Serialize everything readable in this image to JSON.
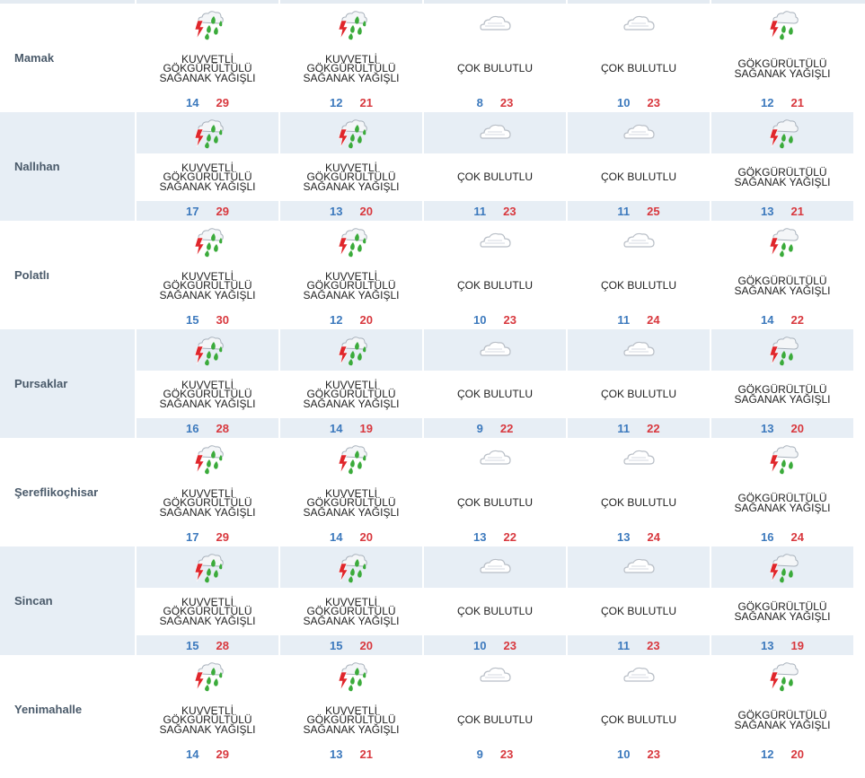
{
  "colors": {
    "row_shade": "#e7eef5",
    "city_text": "#4a5a6a",
    "min_temp": "#3c79bd",
    "max_temp": "#d8383e"
  },
  "forecast": [
    {
      "city": "Mamak",
      "days": [
        {
          "desc": "KUVVETLİ GÖKGÜRÜLTÜLÜ SAĞANAK YAĞIŞLI",
          "icon": "strong-thunderstorm-icon",
          "min": "14",
          "max": "29"
        },
        {
          "desc": "KUVVETLİ GÖKGÜRÜLTÜLÜ SAĞANAK YAĞIŞLI",
          "icon": "strong-thunderstorm-icon",
          "min": "12",
          "max": "21"
        },
        {
          "desc": "ÇOK BULUTLU",
          "icon": "cloudy-icon",
          "min": "8",
          "max": "23"
        },
        {
          "desc": "ÇOK BULUTLU",
          "icon": "cloudy-icon",
          "min": "10",
          "max": "23"
        },
        {
          "desc": "GÖKGÜRÜLTÜLÜ SAĞANAK YAĞIŞLI",
          "icon": "thunderstorm-icon",
          "min": "12",
          "max": "21"
        }
      ]
    },
    {
      "city": "Nallıhan",
      "days": [
        {
          "desc": "KUVVETLİ GÖKGÜRÜLTÜLÜ SAĞANAK YAĞIŞLI",
          "icon": "strong-thunderstorm-icon",
          "min": "17",
          "max": "29"
        },
        {
          "desc": "KUVVETLİ GÖKGÜRÜLTÜLÜ SAĞANAK YAĞIŞLI",
          "icon": "strong-thunderstorm-icon",
          "min": "13",
          "max": "20"
        },
        {
          "desc": "ÇOK BULUTLU",
          "icon": "cloudy-icon",
          "min": "11",
          "max": "23"
        },
        {
          "desc": "ÇOK BULUTLU",
          "icon": "cloudy-icon",
          "min": "11",
          "max": "25"
        },
        {
          "desc": "GÖKGÜRÜLTÜLÜ SAĞANAK YAĞIŞLI",
          "icon": "thunderstorm-icon",
          "min": "13",
          "max": "21"
        }
      ]
    },
    {
      "city": "Polatlı",
      "days": [
        {
          "desc": "KUVVETLİ GÖKGÜRÜLTÜLÜ SAĞANAK YAĞIŞLI",
          "icon": "strong-thunderstorm-icon",
          "min": "15",
          "max": "30"
        },
        {
          "desc": "KUVVETLİ GÖKGÜRÜLTÜLÜ SAĞANAK YAĞIŞLI",
          "icon": "strong-thunderstorm-icon",
          "min": "12",
          "max": "20"
        },
        {
          "desc": "ÇOK BULUTLU",
          "icon": "cloudy-icon",
          "min": "10",
          "max": "23"
        },
        {
          "desc": "ÇOK BULUTLU",
          "icon": "cloudy-icon",
          "min": "11",
          "max": "24"
        },
        {
          "desc": "GÖKGÜRÜLTÜLÜ SAĞANAK YAĞIŞLI",
          "icon": "thunderstorm-icon",
          "min": "14",
          "max": "22"
        }
      ]
    },
    {
      "city": "Pursaklar",
      "days": [
        {
          "desc": "KUVVETLİ GÖKGÜRÜLTÜLÜ SAĞANAK YAĞIŞLI",
          "icon": "strong-thunderstorm-icon",
          "min": "16",
          "max": "28"
        },
        {
          "desc": "KUVVETLİ GÖKGÜRÜLTÜLÜ SAĞANAK YAĞIŞLI",
          "icon": "strong-thunderstorm-icon",
          "min": "14",
          "max": "19"
        },
        {
          "desc": "ÇOK BULUTLU",
          "icon": "cloudy-icon",
          "min": "9",
          "max": "22"
        },
        {
          "desc": "ÇOK BULUTLU",
          "icon": "cloudy-icon",
          "min": "11",
          "max": "22"
        },
        {
          "desc": "GÖKGÜRÜLTÜLÜ SAĞANAK YAĞIŞLI",
          "icon": "thunderstorm-icon",
          "min": "13",
          "max": "20"
        }
      ]
    },
    {
      "city": "Şereflikoçhisar",
      "days": [
        {
          "desc": "KUVVETLİ GÖKGÜRÜLTÜLÜ SAĞANAK YAĞIŞLI",
          "icon": "strong-thunderstorm-icon",
          "min": "17",
          "max": "29"
        },
        {
          "desc": "KUVVETLİ GÖKGÜRÜLTÜLÜ SAĞANAK YAĞIŞLI",
          "icon": "strong-thunderstorm-icon",
          "min": "14",
          "max": "20"
        },
        {
          "desc": "ÇOK BULUTLU",
          "icon": "cloudy-icon",
          "min": "13",
          "max": "22"
        },
        {
          "desc": "ÇOK BULUTLU",
          "icon": "cloudy-icon",
          "min": "13",
          "max": "24"
        },
        {
          "desc": "GÖKGÜRÜLTÜLÜ SAĞANAK YAĞIŞLI",
          "icon": "thunderstorm-icon",
          "min": "16",
          "max": "24"
        }
      ]
    },
    {
      "city": "Sincan",
      "days": [
        {
          "desc": "KUVVETLİ GÖKGÜRÜLTÜLÜ SAĞANAK YAĞIŞLI",
          "icon": "strong-thunderstorm-icon",
          "min": "15",
          "max": "28"
        },
        {
          "desc": "KUVVETLİ GÖKGÜRÜLTÜLÜ SAĞANAK YAĞIŞLI",
          "icon": "strong-thunderstorm-icon",
          "min": "15",
          "max": "20"
        },
        {
          "desc": "ÇOK BULUTLU",
          "icon": "cloudy-icon",
          "min": "10",
          "max": "23"
        },
        {
          "desc": "ÇOK BULUTLU",
          "icon": "cloudy-icon",
          "min": "11",
          "max": "23"
        },
        {
          "desc": "GÖKGÜRÜLTÜLÜ SAĞANAK YAĞIŞLI",
          "icon": "thunderstorm-icon",
          "min": "13",
          "max": "19"
        }
      ]
    },
    {
      "city": "Yenimahalle",
      "days": [
        {
          "desc": "KUVVETLİ GÖKGÜRÜLTÜLÜ SAĞANAK YAĞIŞLI",
          "icon": "strong-thunderstorm-icon",
          "min": "14",
          "max": "29"
        },
        {
          "desc": "KUVVETLİ GÖKGÜRÜLTÜLÜ SAĞANAK YAĞIŞLI",
          "icon": "strong-thunderstorm-icon",
          "min": "13",
          "max": "21"
        },
        {
          "desc": "ÇOK BULUTLU",
          "icon": "cloudy-icon",
          "min": "9",
          "max": "23"
        },
        {
          "desc": "ÇOK BULUTLU",
          "icon": "cloudy-icon",
          "min": "10",
          "max": "23"
        },
        {
          "desc": "GÖKGÜRÜLTÜLÜ SAĞANAK YAĞIŞLI",
          "icon": "thunderstorm-icon",
          "min": "12",
          "max": "20"
        }
      ]
    }
  ]
}
